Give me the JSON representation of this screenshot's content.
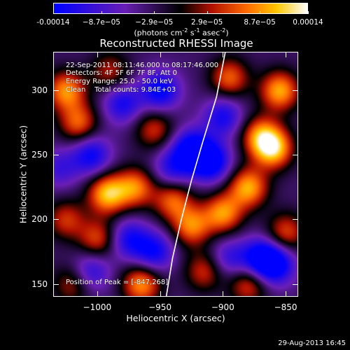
{
  "colorbar": {
    "ticks": [
      "-0.00014",
      "−8.7e−05",
      "−2.9e−05",
      "2.9e−05",
      "8.7e−05",
      "0.00014"
    ],
    "tick_values": [
      -0.00014,
      -8.7e-05,
      -2.9e-05,
      2.9e-05,
      8.7e-05,
      0.00014
    ],
    "range": [
      -0.00014,
      0.00014
    ],
    "units_prefix": "(photons cm",
    "units_sup1": "-2",
    "units_mid1": " s",
    "units_sup2": "-1",
    "units_mid2": " asec",
    "units_sup3": "-2",
    "units_suffix": ")",
    "colors": [
      "#0000ff",
      "#6a1fb5",
      "#000000",
      "#b01000",
      "#ff6a00",
      "#ffc800",
      "#ffffff"
    ]
  },
  "chart_data": {
    "type": "heatmap",
    "title": "Reconstructed RHESSI Image",
    "xlabel": "Heliocentric X (arcsec)",
    "ylabel": "Heliocentric Y (arcsec)",
    "xlim": [
      -1035,
      -840
    ],
    "ylim": [
      140,
      330
    ],
    "xticks": [
      -1000,
      -950,
      -900,
      -850
    ],
    "xtick_labels": [
      "−1000",
      "−950",
      "−900",
      "−850"
    ],
    "yticks": [
      150,
      200,
      250,
      300
    ],
    "ytick_labels": [
      "150",
      "200",
      "250",
      "300"
    ],
    "limb_curve": {
      "x": [
        -945,
        -940,
        -933,
        -925,
        -916,
        -905,
        -898
      ],
      "y": [
        140,
        170,
        200,
        230,
        260,
        295,
        330
      ]
    },
    "blobs": [
      {
        "x": -1025,
        "y": 300,
        "v": 0.00012
      },
      {
        "x": -1015,
        "y": 275,
        "v": 0.0001
      },
      {
        "x": -992,
        "y": 220,
        "v": 0.00014
      },
      {
        "x": -970,
        "y": 225,
        "v": 0.00011
      },
      {
        "x": -1000,
        "y": 185,
        "v": 9e-05
      },
      {
        "x": -1025,
        "y": 200,
        "v": 8e-05
      },
      {
        "x": -965,
        "y": 150,
        "v": 0.00012
      },
      {
        "x": -1020,
        "y": 150,
        "v": 7e-05
      },
      {
        "x": -955,
        "y": 270,
        "v": 8e-05
      },
      {
        "x": -940,
        "y": 215,
        "v": 0.0001
      },
      {
        "x": -925,
        "y": 195,
        "v": 0.00011
      },
      {
        "x": -900,
        "y": 205,
        "v": 0.00012
      },
      {
        "x": -880,
        "y": 225,
        "v": 0.00013
      },
      {
        "x": -870,
        "y": 265,
        "v": 0.00011
      },
      {
        "x": -855,
        "y": 300,
        "v": 0.00013
      },
      {
        "x": -860,
        "y": 255,
        "v": 0.00014
      },
      {
        "x": -895,
        "y": 310,
        "v": 0.0001
      },
      {
        "x": -915,
        "y": 160,
        "v": 8e-05
      },
      {
        "x": -880,
        "y": 150,
        "v": 9e-05
      },
      {
        "x": -850,
        "y": 190,
        "v": 9e-05
      },
      {
        "x": -990,
        "y": 315,
        "v": 7e-05
      },
      {
        "x": -1005,
        "y": 250,
        "v": -0.0001
      },
      {
        "x": -980,
        "y": 290,
        "v": -9e-05
      },
      {
        "x": -950,
        "y": 300,
        "v": -0.00011
      },
      {
        "x": -925,
        "y": 255,
        "v": -0.00012
      },
      {
        "x": -910,
        "y": 245,
        "v": -0.00013
      },
      {
        "x": -900,
        "y": 280,
        "v": -9e-05
      },
      {
        "x": -975,
        "y": 185,
        "v": -9e-05
      },
      {
        "x": -955,
        "y": 175,
        "v": -0.0001
      },
      {
        "x": -1005,
        "y": 160,
        "v": -8e-05
      },
      {
        "x": -870,
        "y": 170,
        "v": -0.00012
      },
      {
        "x": -858,
        "y": 165,
        "v": -0.00011
      },
      {
        "x": -940,
        "y": 240,
        "v": -8e-05
      },
      {
        "x": -1030,
        "y": 240,
        "v": -6e-05
      },
      {
        "x": -895,
        "y": 170,
        "v": -7e-05
      }
    ]
  },
  "annotations": {
    "time_range": "22-Sep-2011 08:11:46.000 to 08:17:46.000",
    "detectors": "Detectors: 4F 5F 6F 7F 8F, Att 0",
    "energy": "Energy Range: 25.0 - 50.0 keV",
    "clean": "Clean    Total counts: 9.84E+03",
    "peak": "Position of Peak = [-847,268]"
  },
  "footer": {
    "date": "29-Aug-2013 16:45"
  }
}
